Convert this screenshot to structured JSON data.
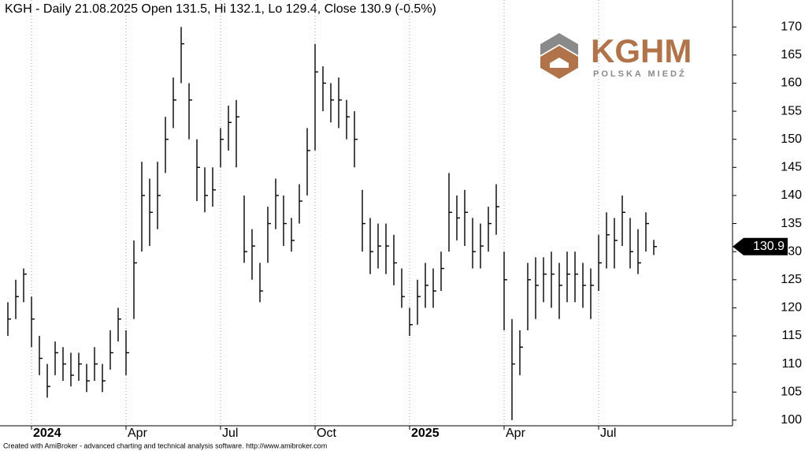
{
  "chart_data": {
    "type": "ohlc",
    "title": "KGH - Daily 21.08.2025 Open 131.5, Hi 132.1, Lo 129.4, Close 130.9 (-0.5%)",
    "footer": "Created with AmiBroker - advanced charting and technical analysis software. http://www.amibroker.com",
    "logo": {
      "name": "KGHM",
      "subtitle": "POLSKA MIEDŹ"
    },
    "color": "#000000",
    "x": [
      -0.75,
      -0.5,
      -0.25,
      0,
      0.25,
      0.5,
      0.75,
      1,
      1.25,
      1.5,
      1.75,
      2,
      2.25,
      2.5,
      2.75,
      3,
      3.25,
      3.5,
      3.75,
      4,
      4.25,
      4.5,
      4.75,
      5,
      5.25,
      5.5,
      5.75,
      6,
      6.25,
      6.5,
      6.75,
      7,
      7.25,
      7.5,
      7.75,
      8,
      8.25,
      8.5,
      8.75,
      9,
      9.25,
      9.5,
      9.75,
      10,
      10.25,
      10.5,
      10.75,
      11,
      11.25,
      11.5,
      11.75,
      12,
      12.25,
      12.5,
      12.75,
      13,
      13.25,
      13.5,
      13.75,
      14,
      14.25,
      14.5,
      14.75,
      15,
      15.25,
      15.5,
      15.75,
      16,
      16.25,
      16.5,
      16.75,
      17,
      17.25,
      17.5,
      17.75,
      18,
      18.25,
      18.5,
      18.75,
      19,
      19.25,
      19.5,
      19.75
    ],
    "high": [
      121,
      125,
      127,
      122,
      115,
      110,
      114,
      113,
      112,
      112,
      110,
      113,
      110,
      116,
      120,
      116,
      132,
      146,
      143,
      146,
      154,
      161,
      170,
      160,
      150,
      145,
      145,
      152,
      156,
      157,
      140,
      134,
      128,
      138,
      143,
      140,
      136,
      142,
      152,
      167,
      163,
      160,
      161,
      157,
      155,
      141,
      136,
      135,
      135,
      133,
      127,
      120,
      125,
      128,
      127,
      130,
      144,
      140,
      141,
      136,
      135,
      138,
      142,
      130,
      118,
      116,
      128,
      129,
      129,
      130,
      128,
      130,
      130,
      128,
      127,
      133,
      137,
      136,
      140,
      136,
      134,
      137,
      132.1
    ],
    "low": [
      115,
      118,
      121,
      113,
      108,
      104,
      108,
      107,
      106,
      107,
      105,
      107,
      105,
      109,
      114,
      108,
      118,
      130,
      131,
      134,
      144,
      152,
      160,
      150,
      139,
      137,
      138,
      145,
      148,
      145,
      128,
      125,
      121,
      128,
      134,
      131,
      130,
      135,
      140,
      148,
      155,
      153,
      152,
      150,
      145,
      130,
      126,
      127,
      126,
      124,
      120,
      115,
      117,
      120,
      120,
      123,
      130,
      132,
      131,
      127,
      127,
      130,
      133,
      116,
      100,
      108,
      116,
      118,
      121,
      120,
      118,
      121,
      121,
      120,
      118,
      123,
      127,
      127,
      131,
      127,
      126,
      130,
      129.4
    ],
    "values": [
      118,
      122,
      126,
      118,
      111,
      106,
      112,
      110,
      108,
      110,
      107,
      110,
      107,
      112,
      118,
      112,
      128,
      140,
      137,
      140,
      150,
      157,
      167,
      157,
      145,
      140,
      141,
      150,
      153,
      154,
      130,
      131,
      123,
      135,
      140,
      135,
      132,
      139,
      148,
      162,
      160,
      157,
      157,
      154,
      150,
      135,
      130,
      131,
      131,
      128,
      122,
      117,
      122,
      124,
      123,
      127,
      137,
      136,
      137,
      130,
      131,
      135,
      138,
      125,
      110,
      113,
      125,
      124,
      126,
      126,
      124,
      126,
      126,
      124,
      124,
      128,
      133,
      132,
      137,
      130,
      128,
      135,
      130.9
    ],
    "xlim": [
      -1,
      22.25
    ],
    "xticks": [
      {
        "value": 0,
        "label": "2024"
      },
      {
        "value": 3,
        "label": "Apr"
      },
      {
        "value": 6,
        "label": "Jul"
      },
      {
        "value": 9,
        "label": "Oct"
      },
      {
        "value": 12,
        "label": "2025"
      },
      {
        "value": 15,
        "label": "Apr"
      },
      {
        "value": 18,
        "label": "Jul"
      }
    ],
    "ylim": [
      99,
      174.8
    ],
    "yticks": [
      100,
      105,
      110,
      115,
      120,
      125,
      130,
      135,
      140,
      145,
      150,
      155,
      160,
      165,
      170
    ],
    "grid": true
  }
}
